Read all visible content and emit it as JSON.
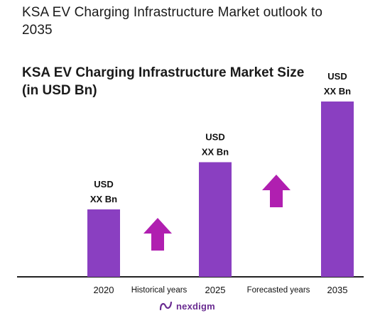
{
  "header": {
    "title": "KSA EV Charging Infrastructure Market outlook to 2035"
  },
  "chart_data": {
    "type": "bar",
    "title": "KSA EV Charging Infrastructure Market Size (in USD Bn)",
    "categories": [
      "2020",
      "2025",
      "2035"
    ],
    "values": [
      1,
      1.7,
      2.6
    ],
    "data_labels": [
      [
        "USD",
        "XX Bn"
      ],
      [
        "USD",
        "XX Bn"
      ],
      [
        "USD",
        "XX Bn"
      ]
    ],
    "period_labels": [
      "Historical years",
      "Forecasted years"
    ],
    "bar_color": "#8a3fc1",
    "arrow_color": "#b01fb0",
    "axis_color": "#222222",
    "grid": false,
    "legend": "none"
  },
  "footer": {
    "logo_text": "nexdigm",
    "logo_color": "#6a2c91"
  }
}
